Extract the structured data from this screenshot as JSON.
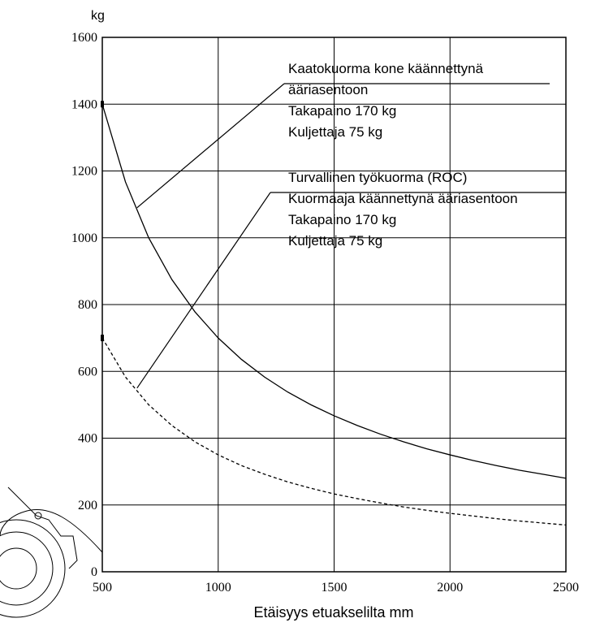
{
  "chart_data": {
    "type": "line",
    "y_unit": "kg",
    "xlabel": "Etäisyys etuakselilta mm",
    "x": [
      500,
      600,
      700,
      800,
      900,
      1000,
      1100,
      1200,
      1300,
      1400,
      1500,
      1600,
      1700,
      1800,
      1900,
      2000,
      2100,
      2200,
      2300,
      2400,
      2500
    ],
    "series": [
      {
        "color": "#000000",
        "dashed": false,
        "values": [
          1400,
          1167,
          1000,
          875,
          778,
          700,
          636,
          583,
          538,
          500,
          467,
          438,
          412,
          389,
          368,
          350,
          333,
          318,
          304,
          292,
          280
        ]
      },
      {
        "color": "#000000",
        "dashed": true,
        "values": [
          700,
          583,
          500,
          438,
          389,
          350,
          318,
          292,
          269,
          250,
          233,
          219,
          206,
          194,
          184,
          175,
          167,
          159,
          152,
          146,
          140
        ]
      }
    ],
    "annotations": [
      {
        "lines": [
          "Kaatokuorma kone käännettynä",
          "ääriasentoon",
          "Takapaino 170 kg",
          "Kuljettaja 75 kg"
        ],
        "x": 650,
        "y": 1090
      },
      {
        "lines": [
          "Turvallinen työkuorma (ROC)",
          "Kuormaaja käännettynä ääriasentoon",
          "Takapaino 170 kg",
          "Kuljettaja 75 kg"
        ],
        "x": 650,
        "y": 550
      }
    ],
    "xlim": [
      500,
      2500
    ],
    "xticks": [
      500,
      1000,
      1500,
      2000,
      2500
    ],
    "ylim": [
      0,
      1600
    ],
    "yticks": [
      0,
      200,
      400,
      600,
      800,
      1000,
      1200,
      1400,
      1600
    ],
    "grid": true
  }
}
